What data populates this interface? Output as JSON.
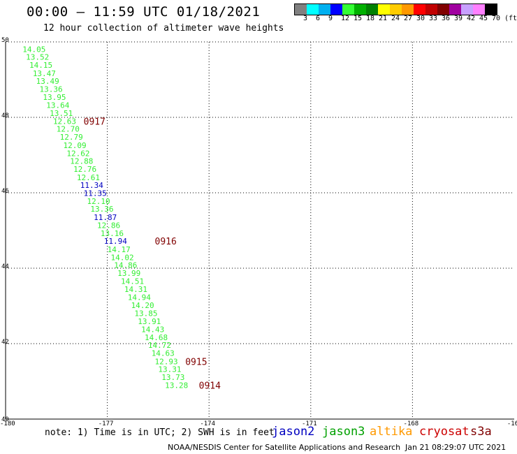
{
  "header": {
    "title": "00:00 – 11:59 UTC 01/18/2021",
    "subtitle": "12 hour collection of altimeter wave heights"
  },
  "colorbar": {
    "colors": [
      "#808080",
      "#00ffff",
      "#00b0f0",
      "#0000ff",
      "#33ff33",
      "#00b000",
      "#008000",
      "#ffff00",
      "#ffcc00",
      "#ff9900",
      "#ff0000",
      "#c00000",
      "#800000",
      "#a000a0",
      "#c8a0ff",
      "#ff80ff",
      "#000000"
    ],
    "labels": [
      "3",
      "6",
      "9",
      "12",
      "15",
      "18",
      "21",
      "24",
      "27",
      "30",
      "33",
      "36",
      "39",
      "42",
      "45",
      "70",
      "(ft)"
    ]
  },
  "map": {
    "lat_ticks": [
      "50",
      "48",
      "46",
      "44",
      "42",
      "40"
    ],
    "lon_ticks": [
      "-180",
      "-177",
      "-174",
      "-171",
      "-168",
      "-16"
    ],
    "lat_range": [
      40,
      50
    ],
    "lon_range": [
      -180,
      -165
    ],
    "grid": "dotted"
  },
  "colors": {
    "jason2": "#0000c0",
    "jason3": "#33ee33",
    "altika": "#ff9900",
    "cryosat": "#cc0000",
    "s3a": "#800000",
    "pass_label": "#800000"
  },
  "observations": [
    {
      "lat": 49.81,
      "lon": -179.5,
      "value": "14.05",
      "sat": "jason3"
    },
    {
      "lat": 49.6,
      "lon": -179.4,
      "value": "13.52",
      "sat": "jason3"
    },
    {
      "lat": 49.39,
      "lon": -179.3,
      "value": "14.15",
      "sat": "jason3"
    },
    {
      "lat": 49.17,
      "lon": -179.2,
      "value": "13.47",
      "sat": "jason3"
    },
    {
      "lat": 48.96,
      "lon": -179.1,
      "value": "13.49",
      "sat": "jason3"
    },
    {
      "lat": 48.75,
      "lon": -179.0,
      "value": "13.36",
      "sat": "jason3"
    },
    {
      "lat": 48.54,
      "lon": -178.9,
      "value": "13.95",
      "sat": "jason3"
    },
    {
      "lat": 48.32,
      "lon": -178.8,
      "value": "13.64",
      "sat": "jason3"
    },
    {
      "lat": 48.11,
      "lon": -178.7,
      "value": "13.51",
      "sat": "jason3"
    },
    {
      "lat": 47.9,
      "lon": -178.6,
      "value": "12.63",
      "sat": "jason3"
    },
    {
      "lat": 47.69,
      "lon": -178.5,
      "value": "12.70",
      "sat": "jason3"
    },
    {
      "lat": 47.48,
      "lon": -178.4,
      "value": "12.79",
      "sat": "jason3"
    },
    {
      "lat": 47.26,
      "lon": -178.3,
      "value": "12.09",
      "sat": "jason3"
    },
    {
      "lat": 47.05,
      "lon": -178.2,
      "value": "12.62",
      "sat": "jason3"
    },
    {
      "lat": 46.84,
      "lon": -178.1,
      "value": "12.88",
      "sat": "jason3"
    },
    {
      "lat": 46.63,
      "lon": -178.0,
      "value": "12.76",
      "sat": "jason3"
    },
    {
      "lat": 46.41,
      "lon": -177.9,
      "value": "12.61",
      "sat": "jason3"
    },
    {
      "lat": 46.2,
      "lon": -177.8,
      "value": "11.34",
      "sat": "jason2"
    },
    {
      "lat": 45.99,
      "lon": -177.7,
      "value": "11.35",
      "sat": "jason2"
    },
    {
      "lat": 45.78,
      "lon": -177.6,
      "value": "12.10",
      "sat": "jason3"
    },
    {
      "lat": 45.57,
      "lon": -177.5,
      "value": "13.36",
      "sat": "jason3"
    },
    {
      "lat": 45.35,
      "lon": -177.4,
      "value": "11.87",
      "sat": "jason2"
    },
    {
      "lat": 45.14,
      "lon": -177.3,
      "value": "12.86",
      "sat": "jason3"
    },
    {
      "lat": 44.93,
      "lon": -177.2,
      "value": "13.16",
      "sat": "jason3"
    },
    {
      "lat": 44.72,
      "lon": -177.1,
      "value": "11.94",
      "sat": "jason2"
    },
    {
      "lat": 44.5,
      "lon": -177.0,
      "value": "14.17",
      "sat": "jason3"
    },
    {
      "lat": 44.29,
      "lon": -176.9,
      "value": "14.02",
      "sat": "jason3"
    },
    {
      "lat": 44.08,
      "lon": -176.8,
      "value": "14.86",
      "sat": "jason3"
    },
    {
      "lat": 43.87,
      "lon": -176.7,
      "value": "13.99",
      "sat": "jason3"
    },
    {
      "lat": 43.66,
      "lon": -176.6,
      "value": "14.51",
      "sat": "jason3"
    },
    {
      "lat": 43.44,
      "lon": -176.5,
      "value": "14.31",
      "sat": "jason3"
    },
    {
      "lat": 43.23,
      "lon": -176.4,
      "value": "14.94",
      "sat": "jason3"
    },
    {
      "lat": 43.02,
      "lon": -176.3,
      "value": "14.20",
      "sat": "jason3"
    },
    {
      "lat": 42.81,
      "lon": -176.2,
      "value": "13.85",
      "sat": "jason3"
    },
    {
      "lat": 42.59,
      "lon": -176.1,
      "value": "13.91",
      "sat": "jason3"
    },
    {
      "lat": 42.38,
      "lon": -176.0,
      "value": "14.43",
      "sat": "jason3"
    },
    {
      "lat": 42.17,
      "lon": -175.9,
      "value": "14.68",
      "sat": "jason3"
    },
    {
      "lat": 41.96,
      "lon": -175.8,
      "value": "14.72",
      "sat": "jason3"
    },
    {
      "lat": 41.75,
      "lon": -175.7,
      "value": "14.63",
      "sat": "jason3"
    },
    {
      "lat": 41.53,
      "lon": -175.6,
      "value": "12.93",
      "sat": "jason3"
    },
    {
      "lat": 41.32,
      "lon": -175.5,
      "value": "13.31",
      "sat": "jason3"
    },
    {
      "lat": 41.11,
      "lon": -175.4,
      "value": "13.73",
      "sat": "jason3"
    },
    {
      "lat": 40.9,
      "lon": -175.3,
      "value": "13.28",
      "sat": "jason3"
    }
  ],
  "pass_labels": [
    {
      "lat": 47.9,
      "lon": -177.7,
      "text": "0917"
    },
    {
      "lat": 44.72,
      "lon": -175.6,
      "text": "0916"
    },
    {
      "lat": 41.53,
      "lon": -174.7,
      "text": "0915"
    },
    {
      "lat": 40.9,
      "lon": -174.3,
      "text": "0914"
    }
  ],
  "footer": {
    "note": "note: 1) Time is in UTC; 2) SWH is in feet",
    "legend": {
      "jason2": "jason2",
      "jason3": "jason3",
      "altika": "altika",
      "cryosat": "cryosat",
      "s3a": "s3a"
    },
    "credit": "NOAA/NESDIS Center for Satellite Applications and Research",
    "timestamp": "Jan 21 08:29:07 UTC 2021"
  }
}
